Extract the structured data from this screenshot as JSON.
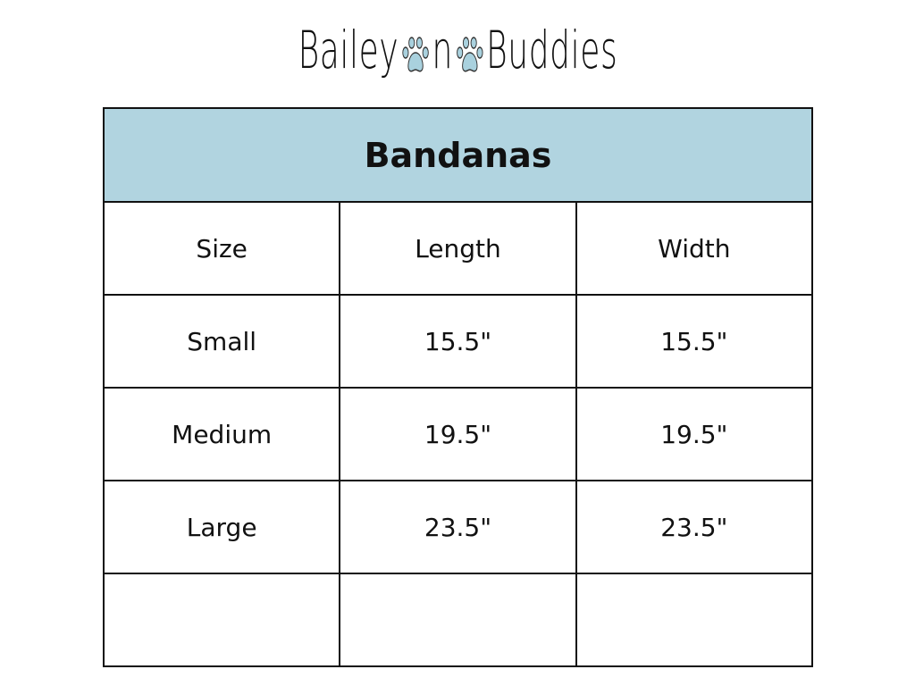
{
  "logo": {
    "part1": "Bailey",
    "part2": "n",
    "part3": "Buddies",
    "paw_color": "#a9d1de",
    "icon": "paw-icon"
  },
  "table": {
    "title": "Bandanas",
    "header_color": "#b1d4e0",
    "columns": [
      "Size",
      "Length",
      "Width"
    ],
    "rows": [
      [
        "Small",
        "15.5\"",
        "15.5\""
      ],
      [
        "Medium",
        "19.5\"",
        "19.5\""
      ],
      [
        "Large",
        "23.5\"",
        "23.5\""
      ],
      [
        "",
        "",
        ""
      ]
    ]
  }
}
